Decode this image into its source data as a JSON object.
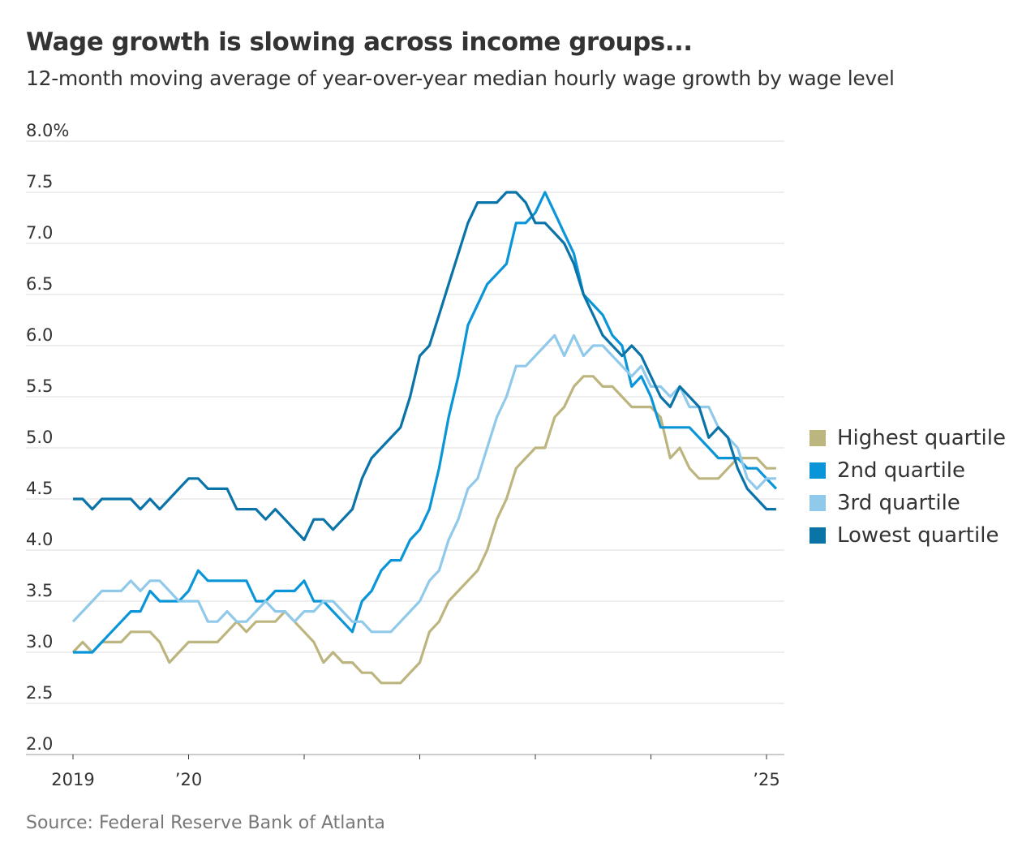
{
  "title": "Wage growth is slowing across income groups...",
  "subtitle": "12-month moving average of year-over-year median hourly wage growth by wage level",
  "source": "Source: Federal Reserve Bank of Atlanta",
  "chart_data": {
    "type": "line",
    "title": "Wage growth is slowing across income groups...",
    "xlabel": "",
    "ylabel": "",
    "ylim": [
      2.0,
      8.0
    ],
    "y_ticks": [
      2.0,
      2.5,
      3.0,
      3.5,
      4.0,
      4.5,
      5.0,
      5.5,
      6.0,
      6.5,
      7.0,
      7.5,
      8.0
    ],
    "y_tick_labels": [
      "2.0",
      "2.5",
      "3.0",
      "3.5",
      "4.0",
      "4.5",
      "5.0",
      "5.5",
      "6.0",
      "6.5",
      "7.0",
      "7.5",
      "8.0%"
    ],
    "x_start": "2019-01",
    "x_step": "month",
    "x_tick_positions": [
      0,
      12,
      24,
      36,
      48,
      60,
      72
    ],
    "x_tick_labels": [
      "2019",
      "’20",
      "",
      "",
      "",
      "",
      "’25"
    ],
    "grid": true,
    "legend_position": "right",
    "series": [
      {
        "name": "Highest quartile",
        "color": "#bdb57f",
        "values": [
          3.0,
          3.1,
          3.0,
          3.1,
          3.1,
          3.1,
          3.2,
          3.2,
          3.2,
          3.1,
          2.9,
          3.0,
          3.1,
          3.1,
          3.1,
          3.1,
          3.2,
          3.3,
          3.2,
          3.3,
          3.3,
          3.3,
          3.4,
          3.3,
          3.2,
          3.1,
          2.9,
          3.0,
          2.9,
          2.9,
          2.8,
          2.8,
          2.7,
          2.7,
          2.7,
          2.8,
          2.9,
          3.2,
          3.3,
          3.5,
          3.6,
          3.7,
          3.8,
          4.0,
          4.3,
          4.5,
          4.8,
          4.9,
          5.0,
          5.0,
          5.3,
          5.4,
          5.6,
          5.7,
          5.7,
          5.6,
          5.6,
          5.5,
          5.4,
          5.4,
          5.4,
          5.3,
          4.9,
          5.0,
          4.8,
          4.7,
          4.7,
          4.7,
          4.8,
          4.9,
          4.9,
          4.9,
          4.8,
          4.8
        ]
      },
      {
        "name": "2nd quartile",
        "color": "#0a95d8",
        "values": [
          3.0,
          3.0,
          3.0,
          3.1,
          3.2,
          3.3,
          3.4,
          3.4,
          3.6,
          3.5,
          3.5,
          3.5,
          3.6,
          3.8,
          3.7,
          3.7,
          3.7,
          3.7,
          3.7,
          3.5,
          3.5,
          3.6,
          3.6,
          3.6,
          3.7,
          3.5,
          3.5,
          3.4,
          3.3,
          3.2,
          3.5,
          3.6,
          3.8,
          3.9,
          3.9,
          4.1,
          4.2,
          4.4,
          4.8,
          5.3,
          5.7,
          6.2,
          6.4,
          6.6,
          6.7,
          6.8,
          7.2,
          7.2,
          7.3,
          7.5,
          7.3,
          7.1,
          6.9,
          6.5,
          6.4,
          6.3,
          6.1,
          6.0,
          5.6,
          5.7,
          5.5,
          5.2,
          5.2,
          5.2,
          5.2,
          5.1,
          5.0,
          4.9,
          4.9,
          4.9,
          4.8,
          4.8,
          4.7,
          4.6
        ]
      },
      {
        "name": "3rd quartile",
        "color": "#91c9ea",
        "values": [
          3.3,
          3.4,
          3.5,
          3.6,
          3.6,
          3.6,
          3.7,
          3.6,
          3.7,
          3.7,
          3.6,
          3.5,
          3.5,
          3.5,
          3.3,
          3.3,
          3.4,
          3.3,
          3.3,
          3.4,
          3.5,
          3.4,
          3.4,
          3.3,
          3.4,
          3.4,
          3.5,
          3.5,
          3.4,
          3.3,
          3.3,
          3.2,
          3.2,
          3.2,
          3.3,
          3.4,
          3.5,
          3.7,
          3.8,
          4.1,
          4.3,
          4.6,
          4.7,
          5.0,
          5.3,
          5.5,
          5.8,
          5.8,
          5.9,
          6.0,
          6.1,
          5.9,
          6.1,
          5.9,
          6.0,
          6.0,
          5.9,
          5.8,
          5.7,
          5.8,
          5.6,
          5.6,
          5.5,
          5.6,
          5.4,
          5.4,
          5.4,
          5.2,
          5.1,
          5.0,
          4.7,
          4.6,
          4.7,
          4.7
        ]
      },
      {
        "name": "Lowest quartile",
        "color": "#0a73a8",
        "values": [
          4.5,
          4.5,
          4.4,
          4.5,
          4.5,
          4.5,
          4.5,
          4.4,
          4.5,
          4.4,
          4.5,
          4.6,
          4.7,
          4.7,
          4.6,
          4.6,
          4.6,
          4.4,
          4.4,
          4.4,
          4.3,
          4.4,
          4.3,
          4.2,
          4.1,
          4.3,
          4.3,
          4.2,
          4.3,
          4.4,
          4.7,
          4.9,
          5.0,
          5.1,
          5.2,
          5.5,
          5.9,
          6.0,
          6.3,
          6.6,
          6.9,
          7.2,
          7.4,
          7.4,
          7.4,
          7.5,
          7.5,
          7.4,
          7.2,
          7.2,
          7.1,
          7.0,
          6.8,
          6.5,
          6.3,
          6.1,
          6.0,
          5.9,
          6.0,
          5.9,
          5.7,
          5.5,
          5.4,
          5.6,
          5.5,
          5.4,
          5.1,
          5.2,
          5.1,
          4.8,
          4.6,
          4.5,
          4.4,
          4.4
        ]
      }
    ]
  }
}
